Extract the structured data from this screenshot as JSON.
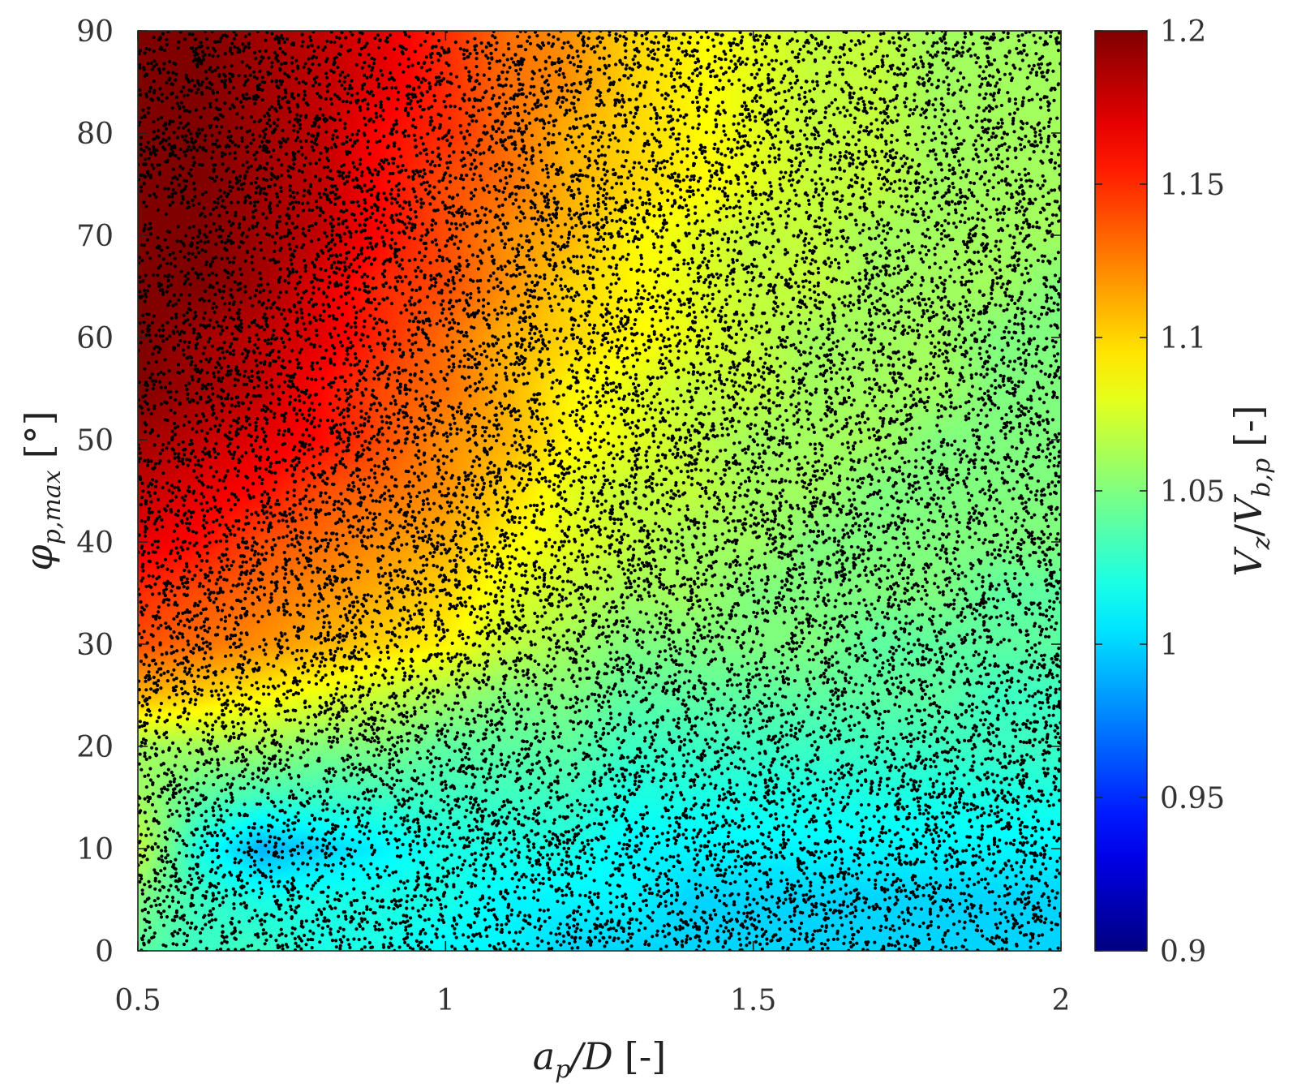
{
  "chart_data": {
    "type": "heatmap",
    "title": "",
    "xlabel": {
      "main": "a",
      "sub": "p",
      "rest": "/D",
      "unit": "[-]"
    },
    "ylabel": {
      "main": "φ",
      "sub": "p,max",
      "unit": "[°]"
    },
    "colorbar_label": {
      "num": "V",
      "num_sub": "z",
      "den": "V",
      "den_sub": "b,p",
      "unit": "[-]"
    },
    "xlim": [
      0.5,
      2
    ],
    "ylim": [
      0,
      90
    ],
    "xticks": [
      0.5,
      1,
      1.5,
      2
    ],
    "xtick_labels": [
      "0.5",
      "1",
      "1.5",
      "2"
    ],
    "yticks": [
      0,
      10,
      20,
      30,
      40,
      50,
      60,
      70,
      80,
      90
    ],
    "ytick_labels": [
      "0",
      "10",
      "20",
      "30",
      "40",
      "50",
      "60",
      "70",
      "80",
      "90"
    ],
    "colorbar": {
      "colormap": "jet",
      "clim": [
        0.9,
        1.2
      ],
      "ticks": [
        0.9,
        0.95,
        1,
        1.05,
        1.1,
        1.15,
        1.2
      ],
      "tick_labels": [
        "0.9",
        "0.95",
        "1",
        "1.05",
        "1.1",
        "1.15",
        "1.2"
      ]
    },
    "x": [
      0.5,
      0.6,
      0.7,
      0.8,
      0.9,
      1.0,
      1.1,
      1.2,
      1.3,
      1.4,
      1.5,
      1.6,
      1.7,
      1.8,
      1.9,
      2.0
    ],
    "y": [
      0,
      5,
      10,
      15,
      20,
      25,
      30,
      35,
      40,
      45,
      50,
      55,
      60,
      65,
      70,
      75,
      80,
      85,
      90
    ],
    "z": [
      [
        1.04,
        1.03,
        1.03,
        1.02,
        1.02,
        1.01,
        1.01,
        1.0,
        1.0,
        1.0,
        1.0,
        1.0,
        1.0,
        1.0,
        1.0,
        1.0
      ],
      [
        1.05,
        1.03,
        1.02,
        1.02,
        1.02,
        1.02,
        1.01,
        1.01,
        1.01,
        1.0,
        1.0,
        1.0,
        1.0,
        1.0,
        1.0,
        1.0
      ],
      [
        1.07,
        1.02,
        0.99,
        1.0,
        1.01,
        1.02,
        1.02,
        1.02,
        1.01,
        1.01,
        1.01,
        1.01,
        1.01,
        1.01,
        1.01,
        1.01
      ],
      [
        1.06,
        1.04,
        1.03,
        1.03,
        1.03,
        1.03,
        1.03,
        1.03,
        1.02,
        1.02,
        1.02,
        1.02,
        1.02,
        1.02,
        1.02,
        1.02
      ],
      [
        1.06,
        1.06,
        1.06,
        1.05,
        1.05,
        1.04,
        1.04,
        1.04,
        1.03,
        1.03,
        1.03,
        1.03,
        1.03,
        1.03,
        1.03,
        1.03
      ],
      [
        1.11,
        1.1,
        1.09,
        1.08,
        1.07,
        1.06,
        1.05,
        1.05,
        1.04,
        1.04,
        1.04,
        1.04,
        1.04,
        1.04,
        1.03,
        1.03
      ],
      [
        1.14,
        1.13,
        1.12,
        1.11,
        1.1,
        1.09,
        1.07,
        1.06,
        1.05,
        1.05,
        1.05,
        1.05,
        1.04,
        1.04,
        1.04,
        1.04
      ],
      [
        1.15,
        1.14,
        1.13,
        1.12,
        1.11,
        1.1,
        1.08,
        1.07,
        1.06,
        1.06,
        1.05,
        1.05,
        1.05,
        1.05,
        1.04,
        1.04
      ],
      [
        1.17,
        1.16,
        1.14,
        1.13,
        1.12,
        1.11,
        1.09,
        1.08,
        1.07,
        1.06,
        1.06,
        1.05,
        1.05,
        1.05,
        1.05,
        1.05
      ],
      [
        1.18,
        1.17,
        1.16,
        1.14,
        1.13,
        1.12,
        1.1,
        1.08,
        1.07,
        1.07,
        1.06,
        1.06,
        1.05,
        1.05,
        1.05,
        1.05
      ],
      [
        1.19,
        1.18,
        1.17,
        1.16,
        1.14,
        1.12,
        1.11,
        1.09,
        1.08,
        1.07,
        1.06,
        1.06,
        1.06,
        1.05,
        1.05,
        1.05
      ],
      [
        1.2,
        1.19,
        1.18,
        1.16,
        1.14,
        1.13,
        1.11,
        1.09,
        1.08,
        1.07,
        1.07,
        1.06,
        1.06,
        1.06,
        1.05,
        1.05
      ],
      [
        1.2,
        1.19,
        1.18,
        1.17,
        1.15,
        1.13,
        1.11,
        1.1,
        1.09,
        1.08,
        1.07,
        1.06,
        1.06,
        1.06,
        1.05,
        1.05
      ],
      [
        1.2,
        1.2,
        1.19,
        1.17,
        1.15,
        1.14,
        1.12,
        1.1,
        1.09,
        1.08,
        1.07,
        1.07,
        1.06,
        1.06,
        1.06,
        1.05
      ],
      [
        1.2,
        1.2,
        1.19,
        1.18,
        1.16,
        1.14,
        1.12,
        1.11,
        1.09,
        1.08,
        1.07,
        1.07,
        1.06,
        1.06,
        1.06,
        1.06
      ],
      [
        1.2,
        1.2,
        1.19,
        1.18,
        1.16,
        1.14,
        1.13,
        1.11,
        1.1,
        1.09,
        1.08,
        1.07,
        1.07,
        1.06,
        1.06,
        1.06
      ],
      [
        1.2,
        1.2,
        1.19,
        1.18,
        1.16,
        1.15,
        1.13,
        1.11,
        1.1,
        1.09,
        1.08,
        1.07,
        1.07,
        1.06,
        1.06,
        1.06
      ],
      [
        1.2,
        1.2,
        1.19,
        1.18,
        1.17,
        1.15,
        1.13,
        1.12,
        1.1,
        1.09,
        1.08,
        1.07,
        1.07,
        1.06,
        1.06,
        1.06
      ],
      [
        1.2,
        1.2,
        1.19,
        1.18,
        1.17,
        1.15,
        1.13,
        1.12,
        1.1,
        1.09,
        1.08,
        1.07,
        1.07,
        1.06,
        1.06,
        1.06
      ]
    ],
    "scatter": {
      "marker": "dot",
      "color": "#000000",
      "count": 20000,
      "distribution": "uniform random over the plotted domain"
    },
    "grid": false
  }
}
